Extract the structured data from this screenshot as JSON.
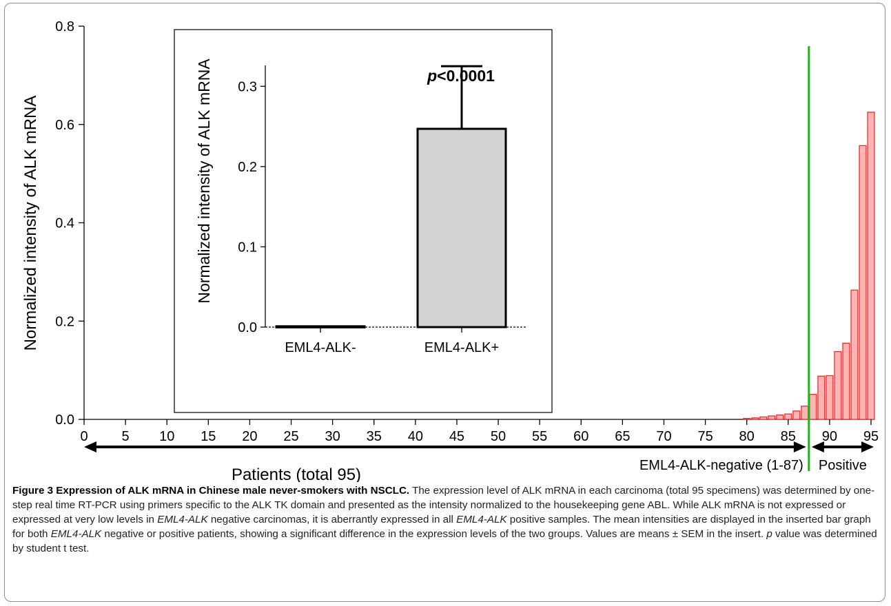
{
  "chart_data": [
    {
      "type": "bar",
      "ylabel": "Normalized intensity of ALK mRNA",
      "xlabel": "Patients (total 95)",
      "ylim": [
        0,
        0.8
      ],
      "yticks": [
        "0.0",
        "0.2",
        "0.4",
        "0.6",
        "0.8"
      ],
      "xlim": [
        0,
        95
      ],
      "xticks": [
        "0",
        "5",
        "10",
        "15",
        "20",
        "25",
        "30",
        "35",
        "40",
        "45",
        "50",
        "55",
        "60",
        "65",
        "70",
        "75",
        "80",
        "85",
        "90",
        "95"
      ],
      "x": [
        80,
        81,
        82,
        83,
        84,
        85,
        86,
        87,
        88,
        89,
        90,
        91,
        92,
        93,
        94,
        95
      ],
      "values": [
        0.002,
        0.003,
        0.005,
        0.007,
        0.009,
        0.011,
        0.017,
        0.027,
        0.051,
        0.088,
        0.089,
        0.138,
        0.155,
        0.263,
        0.557,
        0.625
      ],
      "groups": [
        {
          "label": "EML4-ALK-negative (1-87)",
          "range": [
            1,
            87
          ]
        },
        {
          "label": "Positive",
          "range": [
            88,
            95
          ]
        }
      ],
      "cutoff_x": 87.5,
      "colors": {
        "bar_fill": "#ffb3b3",
        "bar_edge": "#e03030",
        "cutoff_line": "#1db31d"
      }
    },
    {
      "type": "bar",
      "ylabel": "Normalized intensity of ALK mRNA",
      "categories": [
        "EML4-ALK-",
        "EML4-ALK+"
      ],
      "values": [
        0.001,
        0.247
      ],
      "error": [
        0.0005,
        0.078
      ],
      "ylim": [
        0,
        0.35
      ],
      "yticks": [
        "0.0",
        "0.1",
        "0.2",
        "0.3"
      ],
      "annotation": "<0.0001",
      "annotation_prefix": "p",
      "colors": {
        "bar_fill": "#d3d3d3",
        "bar_edge": "#000000"
      }
    }
  ],
  "caption": {
    "bold": "Figure 3 Expression of ALK mRNA in Chinese male never-smokers with NSCLC.",
    "t1": " The expression level of ALK mRNA in each carcinoma (total 95 specimens) was determined by one-step real time RT-PCR using primers specific to the ALK TK domain and presented as the intensity normalized to the housekeeping gene ABL. While ALK mRNA is not expressed or expressed at very low levels in ",
    "i1": "EML4-ALK",
    "t2": " negative carcinomas, it is aberrantly expressed in all ",
    "i2": "EML4-ALK",
    "t3": " positive samples. The mean intensities are displayed in the inserted bar graph for both ",
    "i3": "EML4-ALK",
    "t4": " negative or positive patients, showing a significant difference in the expression levels of the two groups. Values are means ± SEM in the insert. ",
    "i4": "p",
    "t5": " value was determined by student t test."
  }
}
